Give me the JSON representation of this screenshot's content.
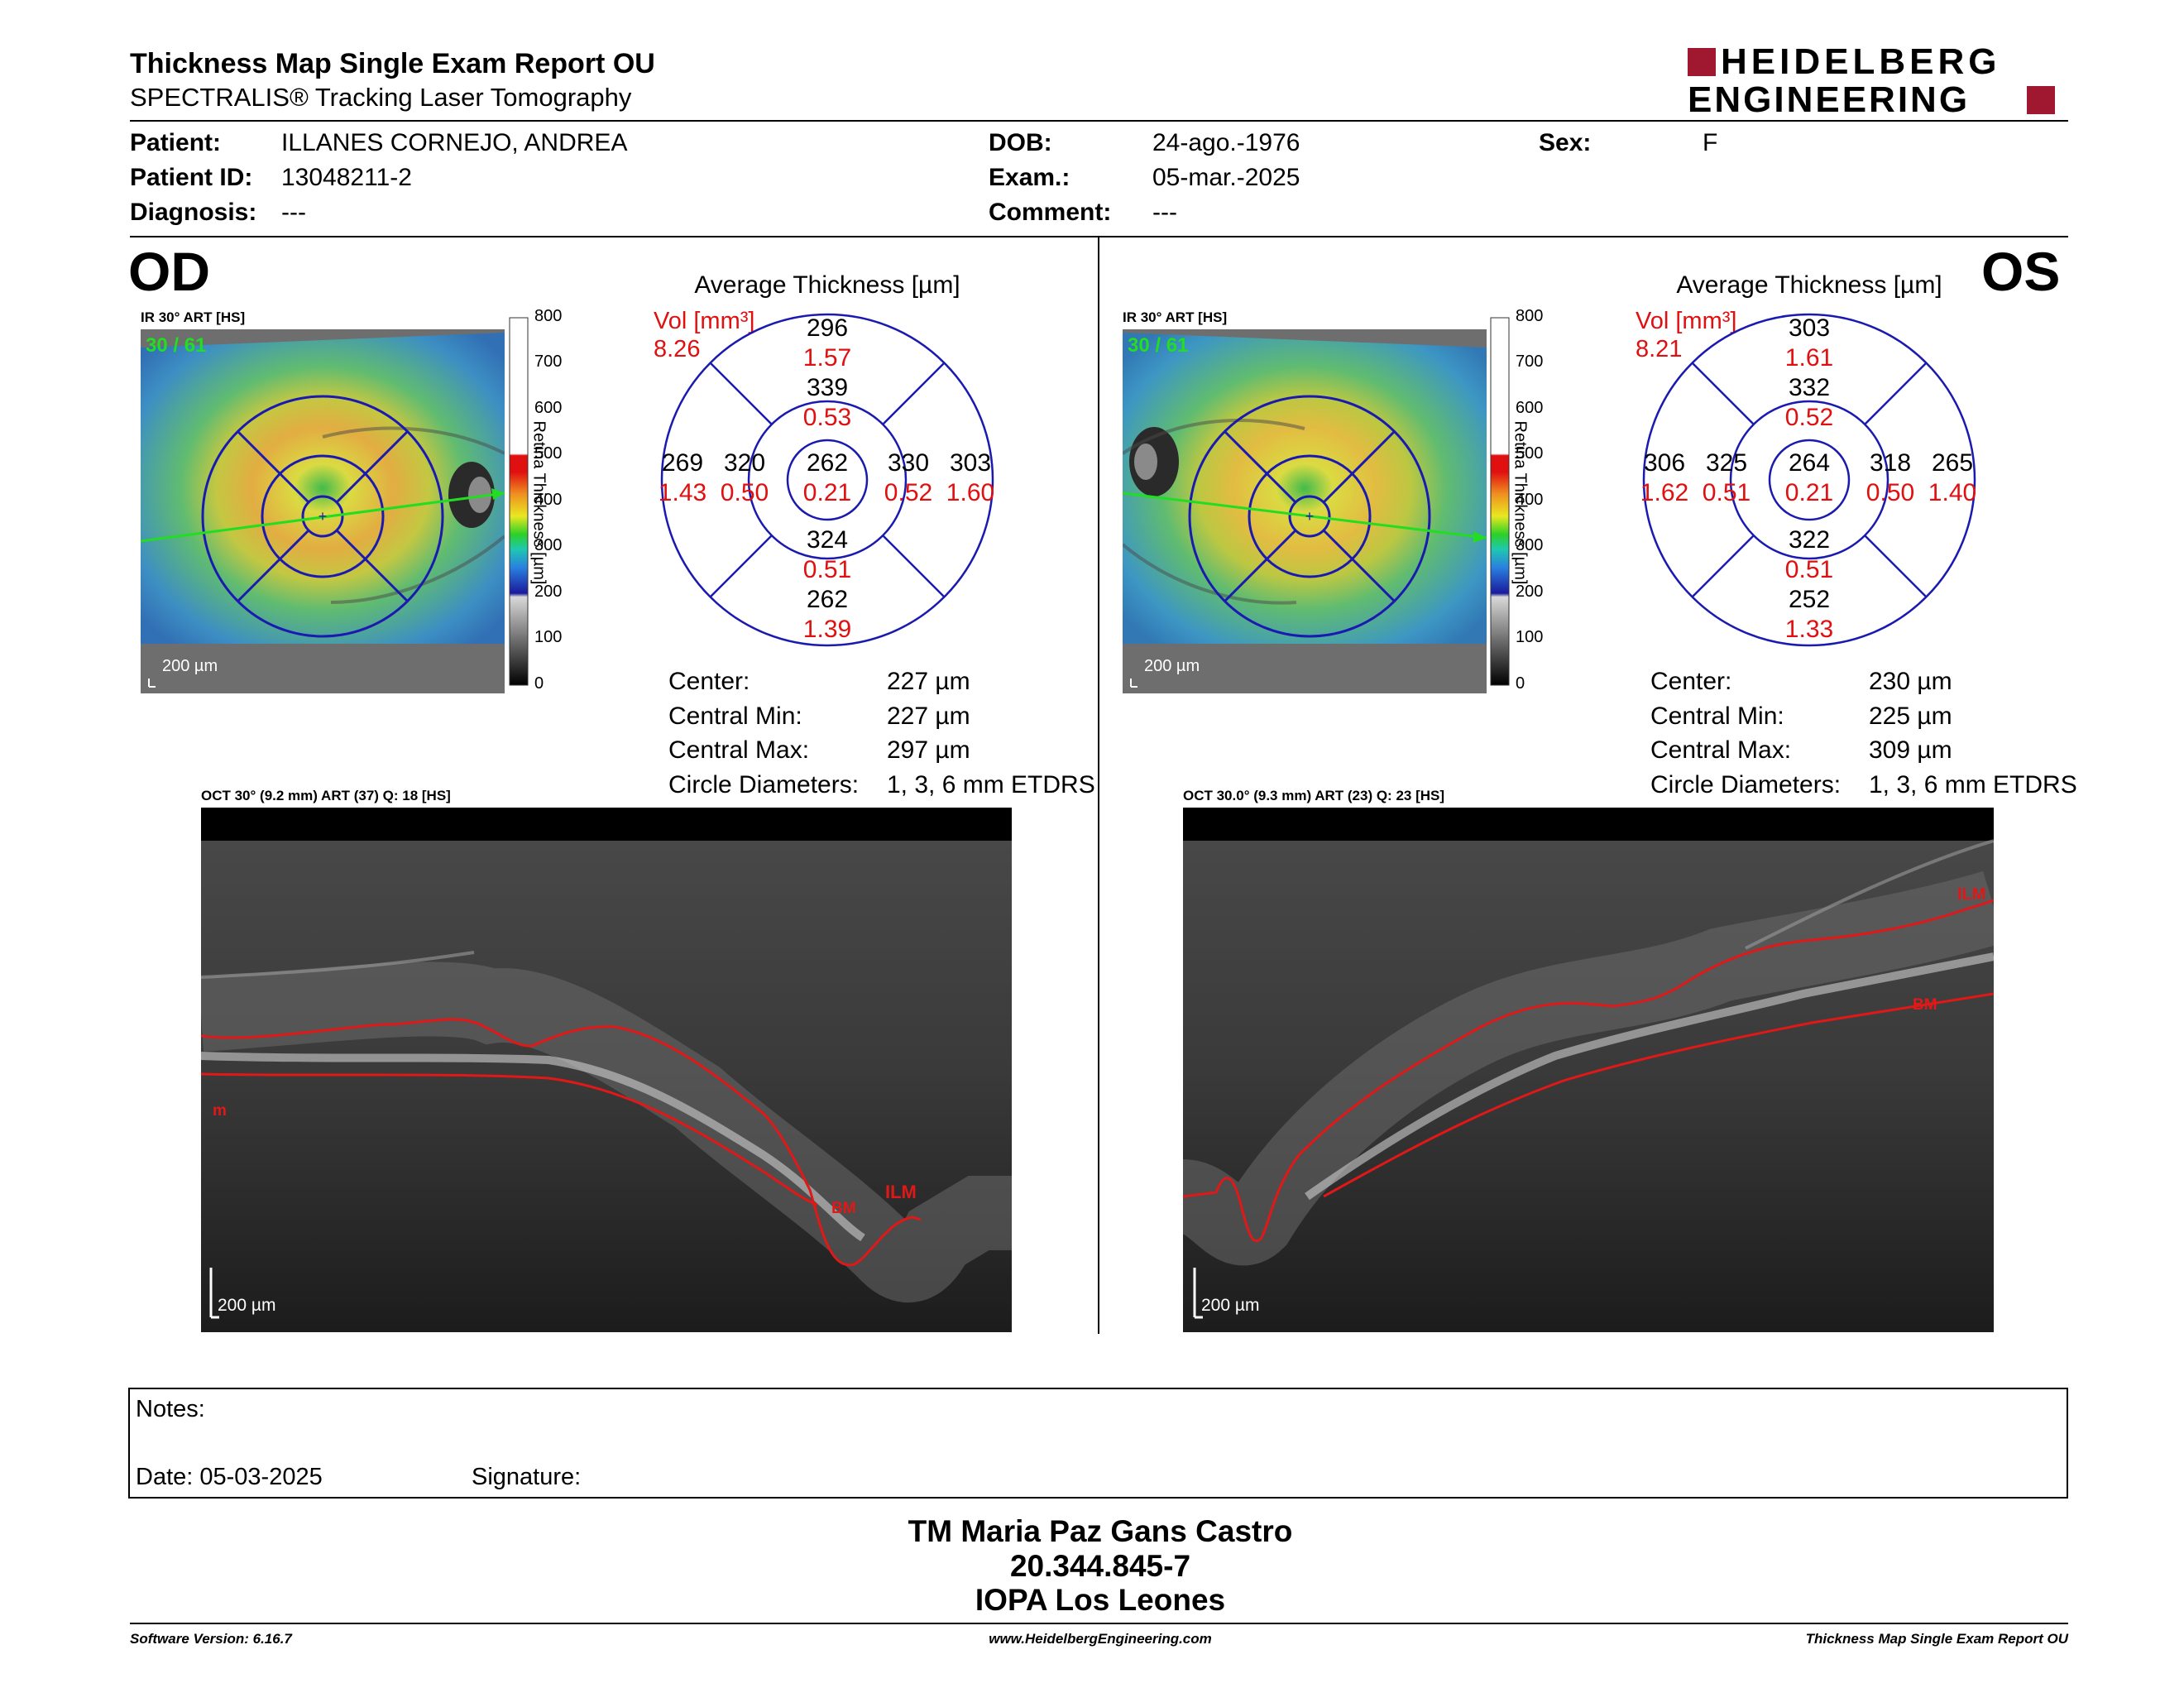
{
  "header": {
    "title": "Thickness Map Single Exam Report OU",
    "subtitle": "SPECTRALIS® Tracking Laser Tomography",
    "brand_line1": "HEIDELBERG",
    "brand_line2": "ENGINEERING",
    "brand_color": "#a01830"
  },
  "patient": {
    "patient_label": "Patient:",
    "patient_value": "ILLANES CORNEJO, ANDREA",
    "id_label": "Patient ID:",
    "id_value": "13048211-2",
    "diag_label": "Diagnosis:",
    "diag_value": "---",
    "dob_label": "DOB:",
    "dob_value": "24-ago.-1976",
    "exam_label": "Exam.:",
    "exam_value": "05-mar.-2025",
    "comment_label": "Comment:",
    "comment_value": "---",
    "sex_label": "Sex:",
    "sex_value": "F"
  },
  "od": {
    "eye": "OD",
    "ir_caption": "IR 30° ART [HS]",
    "frames": "30 / 61",
    "scale": "200 µm",
    "thick_title": "Average Thickness [µm]",
    "vol_label": "Vol [mm³]",
    "vol_total": "8.26",
    "etdrs": {
      "center_t": "262",
      "center_v": "0.21",
      "inner_sup_t": "339",
      "inner_sup_v": "0.53",
      "inner_nas_t": "330",
      "inner_nas_v": "0.52",
      "inner_inf_t": "324",
      "inner_inf_v": "0.51",
      "inner_tem_t": "320",
      "inner_tem_v": "0.50",
      "outer_sup_t": "296",
      "outer_sup_v": "1.57",
      "outer_nas_t": "303",
      "outer_nas_v": "1.60",
      "outer_inf_t": "262",
      "outer_inf_v": "1.39",
      "outer_tem_t": "269",
      "outer_tem_v": "1.43"
    },
    "stats": {
      "center_label": "Center:",
      "center_value": "227 µm",
      "cmin_label": "Central Min:",
      "cmin_value": "227 µm",
      "cmax_label": "Central Max:",
      "cmax_value": "297 µm",
      "circ_label": "Circle Diameters:",
      "circ_value": "1, 3, 6 mm ETDRS"
    },
    "oct_caption": "OCT 30° (9.2 mm) ART (37) Q: 18 [HS]",
    "oct_scale": "200 µm",
    "layer_ilm": "ILM",
    "layer_bm": "BM",
    "layer_m": "m"
  },
  "os": {
    "eye": "OS",
    "ir_caption": "IR 30° ART [HS]",
    "frames": "30 / 61",
    "scale": "200 µm",
    "thick_title": "Average Thickness [µm]",
    "vol_label": "Vol [mm³]",
    "vol_total": "8.21",
    "etdrs": {
      "center_t": "264",
      "center_v": "0.21",
      "inner_sup_t": "332",
      "inner_sup_v": "0.52",
      "inner_nas_t": "325",
      "inner_nas_v": "0.51",
      "inner_inf_t": "322",
      "inner_inf_v": "0.51",
      "inner_tem_t": "318",
      "inner_tem_v": "0.50",
      "outer_sup_t": "303",
      "outer_sup_v": "1.61",
      "outer_nas_t": "306",
      "outer_nas_v": "1.62",
      "outer_inf_t": "252",
      "outer_inf_v": "1.33",
      "outer_tem_t": "265",
      "outer_tem_v": "1.40"
    },
    "stats": {
      "center_label": "Center:",
      "center_value": "230 µm",
      "cmin_label": "Central Min:",
      "cmin_value": "225 µm",
      "cmax_label": "Central Max:",
      "cmax_value": "309 µm",
      "circ_label": "Circle Diameters:",
      "circ_value": "1, 3, 6 mm ETDRS"
    },
    "oct_caption": "OCT 30.0° (9.3 mm) ART (23) Q: 23 [HS]",
    "oct_scale": "200 µm",
    "layer_ilm": "ILM",
    "layer_bm": "BM"
  },
  "colorbar": {
    "ticks": [
      "800",
      "700",
      "600",
      "500",
      "400",
      "300",
      "200",
      "100",
      "0"
    ],
    "label": "Retina Thickness [µm]"
  },
  "notes": {
    "notes_label": "Notes:",
    "date_label": "Date: 05-03-2025",
    "signature_label": "Signature:"
  },
  "signature_block": {
    "name": "TM Maria Paz Gans Castro",
    "rut": "20.344.845-7",
    "clinic": "IOPA Los Leones"
  },
  "footer": {
    "software": "Software Version: 6.16.7",
    "website": "www.HeidelbergEngineering.com",
    "report": "Thickness Map Single Exam Report OU"
  }
}
